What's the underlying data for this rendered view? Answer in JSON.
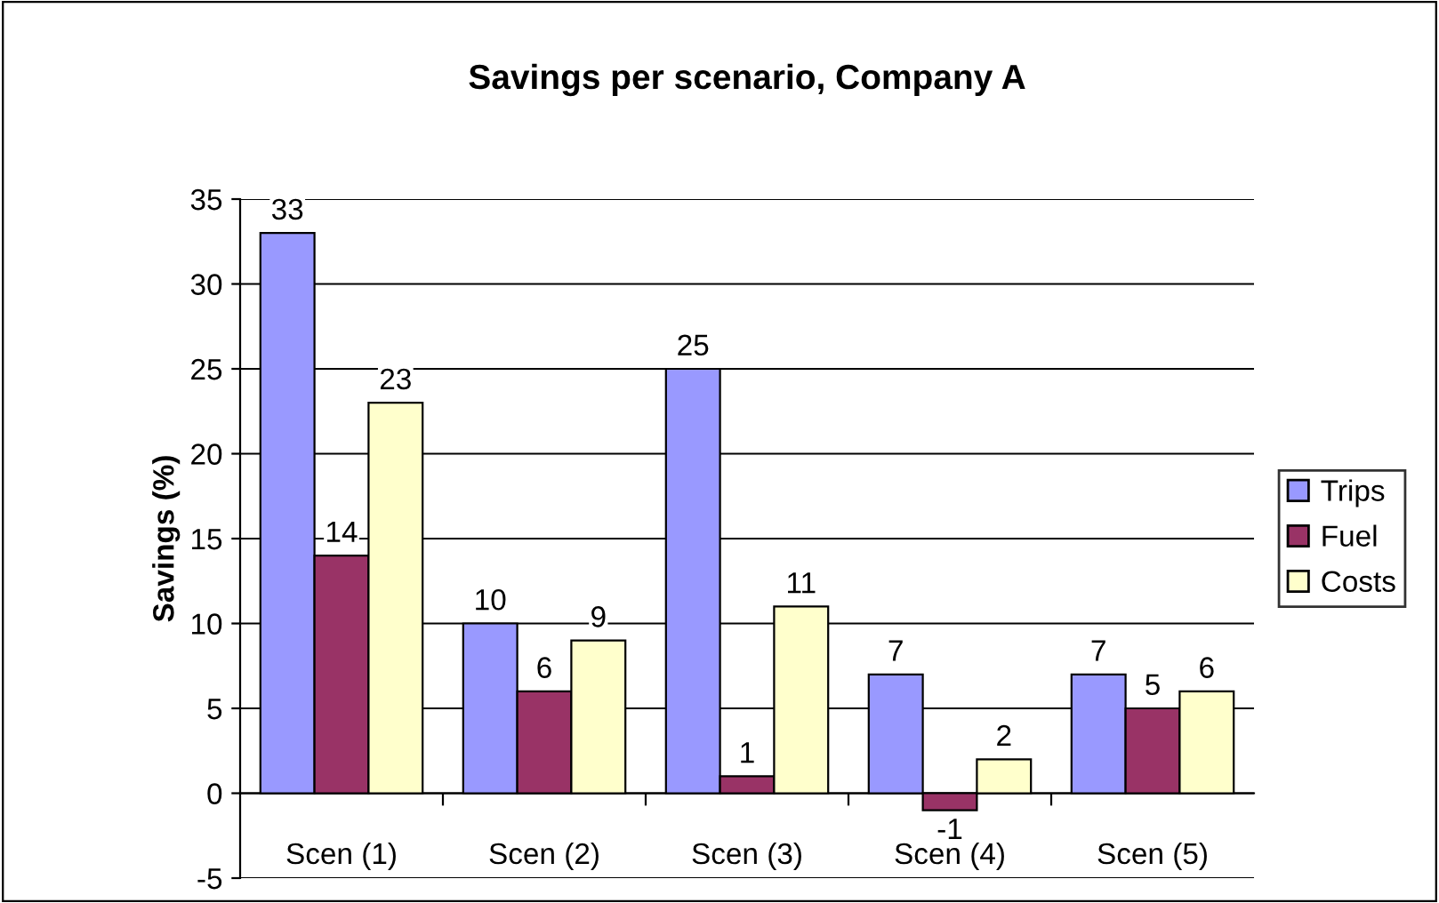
{
  "chart_data": {
    "type": "bar",
    "title": "Savings per scenario, Company A",
    "ylabel": "Savings (%)",
    "categories": [
      "Scen (1)",
      "Scen (2)",
      "Scen (3)",
      "Scen (4)",
      "Scen (5)"
    ],
    "series": [
      {
        "name": "Trips",
        "color": "#9999ff",
        "values": [
          33,
          10,
          25,
          7,
          7
        ]
      },
      {
        "name": "Fuel",
        "color": "#993366",
        "values": [
          14,
          6,
          1,
          -1,
          5
        ]
      },
      {
        "name": "Costs",
        "color": "#ffffcc",
        "values": [
          23,
          9,
          11,
          2,
          6
        ]
      }
    ],
    "ylim": [
      -5,
      35
    ],
    "yticks": [
      -5,
      0,
      5,
      10,
      15,
      20,
      25,
      30,
      35
    ],
    "grid": "y",
    "legend": "right",
    "data_labels": true
  }
}
